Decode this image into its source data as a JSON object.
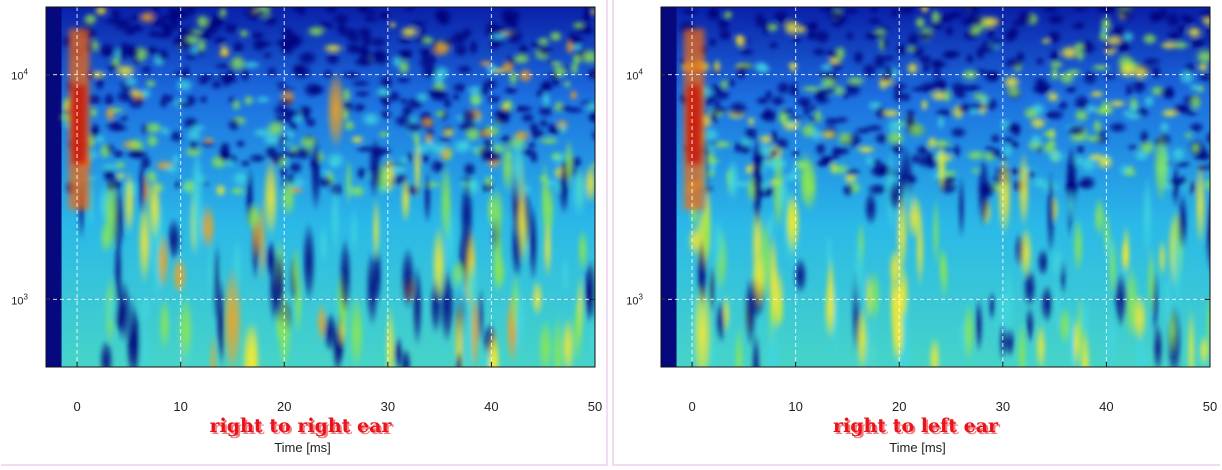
{
  "chart_data": [
    {
      "type": "heatmap",
      "title": "right to right ear",
      "xlabel": "Time [ms]",
      "ylabel": "",
      "x_ticks": [
        0,
        10,
        20,
        30,
        40,
        50
      ],
      "y_ticks": [
        {
          "value": 1000,
          "label_base": "10",
          "label_exp": "3"
        },
        {
          "value": 10000,
          "label_base": "10",
          "label_exp": "4"
        }
      ],
      "xlim": [
        -3,
        50
      ],
      "ylim": [
        500,
        20000
      ],
      "y_scale": "log",
      "grid": true,
      "colormap": "jet",
      "intensity_features": [
        {
          "x": 0,
          "y": 6000,
          "description_level": 1.0
        },
        {
          "x": 15,
          "y": 800,
          "description_level": 0.8
        },
        {
          "x": 25,
          "y": 7000,
          "description_level": 0.8
        }
      ]
    },
    {
      "type": "heatmap",
      "title": "right to left ear",
      "xlabel": "Time [ms]",
      "ylabel": "",
      "x_ticks": [
        0,
        10,
        20,
        30,
        40,
        50
      ],
      "y_ticks": [
        {
          "value": 1000,
          "label_base": "10",
          "label_exp": "3"
        },
        {
          "value": 10000,
          "label_base": "10",
          "label_exp": "4"
        }
      ],
      "xlim": [
        -3,
        50
      ],
      "ylim": [
        500,
        20000
      ],
      "y_scale": "log",
      "grid": true,
      "colormap": "jet",
      "intensity_features": [
        {
          "x": 0,
          "y": 6000,
          "description_level": 1.0
        },
        {
          "x": 1,
          "y": 700,
          "description_level": 0.7
        }
      ]
    }
  ]
}
